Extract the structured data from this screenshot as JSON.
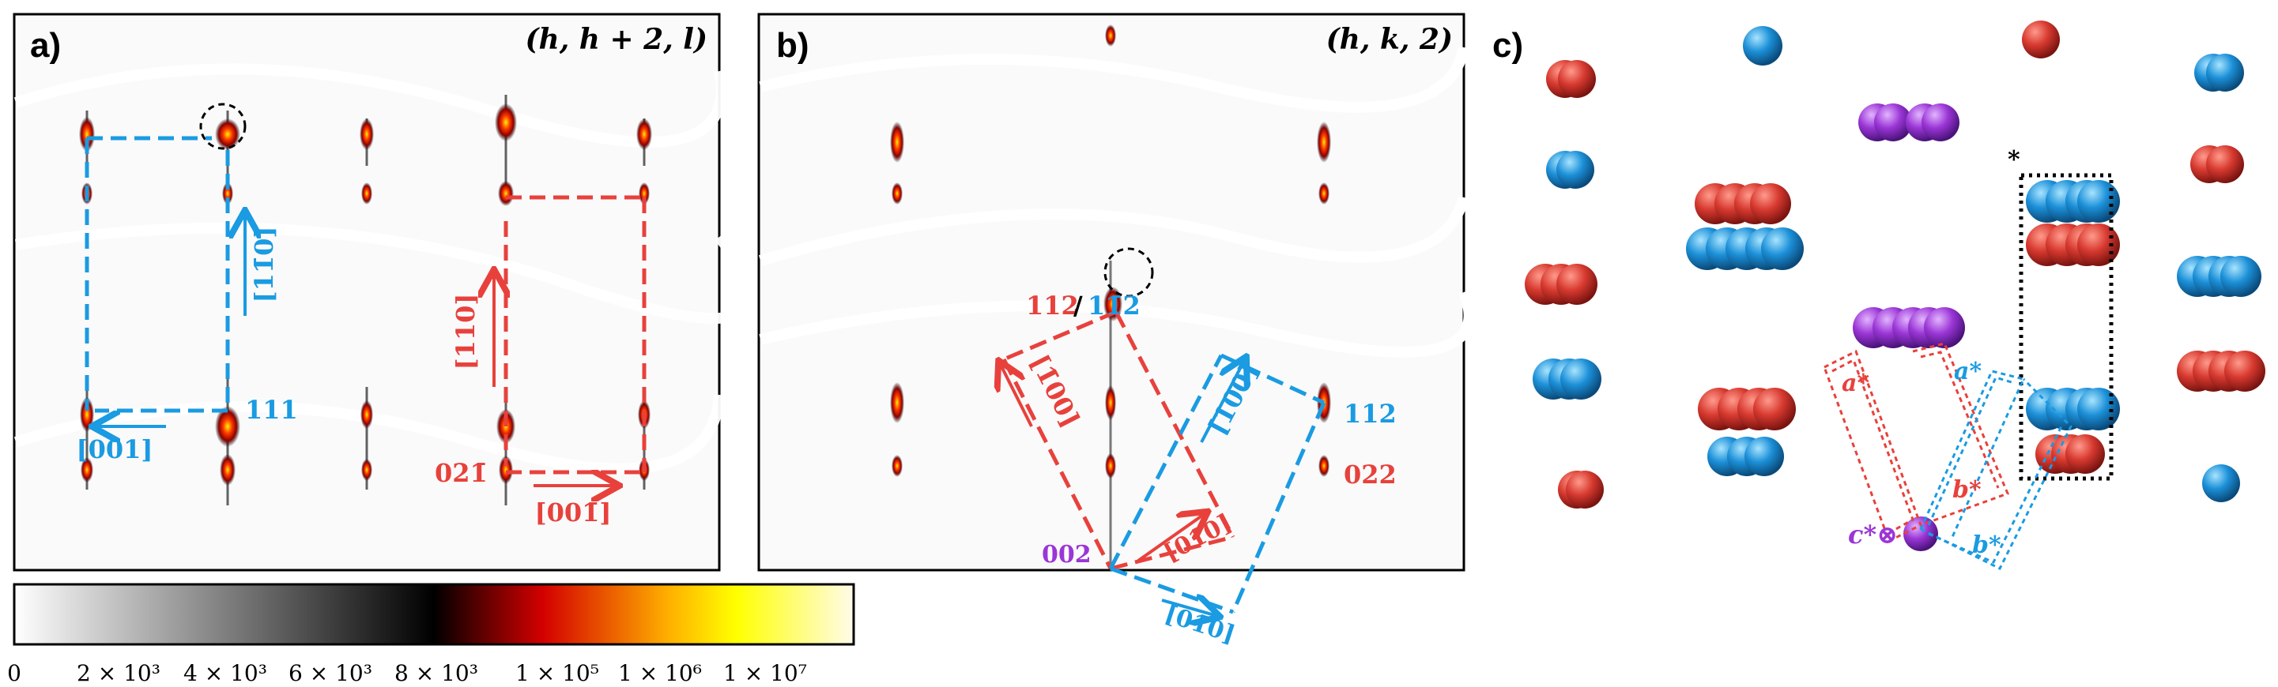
{
  "panels": {
    "a": {
      "letter": "a)",
      "plane": "(h, h + 2, l)",
      "labels": {
        "dir_110": "[11̄0]",
        "dir_001": "[001]",
        "peak_111": "111",
        "dir_110r": "[110]",
        "dir_001r": "[001̄]",
        "peak_021": "021̄"
      }
    },
    "b": {
      "letter": "b)",
      "plane": "(h, k, 2)",
      "labels": {
        "peak_112_red": "112",
        "slash": "/",
        "peak_112_blue": "11̄2",
        "dir_100_red": "[1̄00]",
        "dir_100_blue": "[100]",
        "dir_010_red": "[01̄0]",
        "dir_010_blue": "[01̄0]",
        "peak_002": "002",
        "peak_112": "112",
        "peak_022": "022"
      }
    },
    "c": {
      "letter": "c)",
      "star": "*",
      "labels": {
        "a_red": "a*",
        "b_red": "b*",
        "a_blue": "a*",
        "b_blue": "b*",
        "c_star": "c*⊗"
      }
    }
  },
  "colorbar": {
    "ticks": [
      "0",
      "2 × 10³",
      "4 × 10³",
      "6 × 10³",
      "8 × 10³",
      "1 × 10⁵",
      "1 × 10⁶",
      "1 × 10⁷"
    ],
    "stops": [
      "#ffffff",
      "#000000",
      "#e00000",
      "#ffe800",
      "#fffbe8"
    ]
  },
  "colors": {
    "red": "#e8413c",
    "blue": "#1a9be2",
    "purple": "#9b36d6"
  }
}
